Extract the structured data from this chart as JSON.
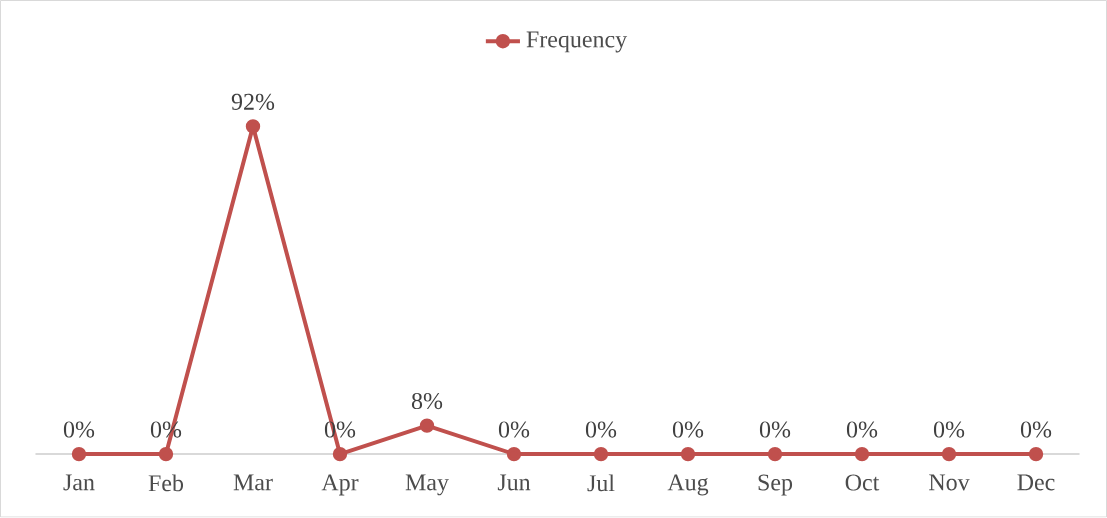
{
  "chart_data": {
    "type": "line",
    "categories": [
      "Jan",
      "Feb",
      "Mar",
      "Apr",
      "May",
      "Jun",
      "Jul",
      "Aug",
      "Sep",
      "Oct",
      "Nov",
      "Dec"
    ],
    "series": [
      {
        "name": "Frequency",
        "color": "#c0504d",
        "values": [
          0,
          0,
          92,
          0,
          8,
          0,
          0,
          0,
          0,
          0,
          0,
          0
        ],
        "value_labels": [
          "0%",
          "0%",
          "92%",
          "0%",
          "8%",
          "0%",
          "0%",
          "0%",
          "0%",
          "0%",
          "0%",
          "0%"
        ]
      }
    ],
    "legend": "top",
    "marker": "circle",
    "line_style": "solid"
  }
}
